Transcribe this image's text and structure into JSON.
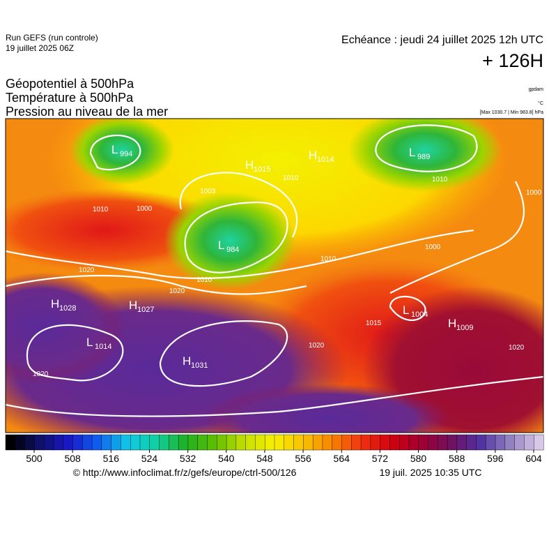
{
  "header": {
    "run": "Run GEFS (run controle)",
    "run_date": "19 juillet 2025 06Z",
    "valid": "Echéance : jeudi 24 juillet 2025 12h UTC",
    "lead": "+ 126H"
  },
  "fields": [
    "Géopotentiel à 500hPa",
    "Température à 500hPa",
    "Pression au niveau de la mer"
  ],
  "units": {
    "geopotential": "gpdam",
    "temperature": "°C",
    "pressure_range": "[Max 1030.7 | Min 983.8] hPa"
  },
  "pressure_centers": [
    {
      "label": "L",
      "value": 994
    },
    {
      "label": "H",
      "value": 1015
    },
    {
      "label": "H",
      "value": 1014
    },
    {
      "label": "L",
      "value": 989
    },
    {
      "label": "L",
      "value": 984
    },
    {
      "label": "H",
      "value": 1028
    },
    {
      "label": "H",
      "value": 1027
    },
    {
      "label": "L",
      "value": 1004
    },
    {
      "label": "H",
      "value": 1009
    },
    {
      "label": "L",
      "value": 1014
    },
    {
      "label": "H",
      "value": 1031
    }
  ],
  "isobar_labels": [
    1003,
    1000,
    1010,
    1010,
    1010,
    1000,
    1000,
    1020,
    1010,
    1020,
    1010,
    1020,
    1015,
    1020,
    1020
  ],
  "colorbar": {
    "ticks": [
      500,
      508,
      516,
      524,
      532,
      540,
      548,
      556,
      564,
      572,
      580,
      588,
      596,
      604
    ]
  },
  "footer": {
    "url": "© http://www.infoclimat.fr/z/gefs/europe/ctrl-500/126",
    "timestamp": "19 juil. 2025 10:35 UTC"
  }
}
